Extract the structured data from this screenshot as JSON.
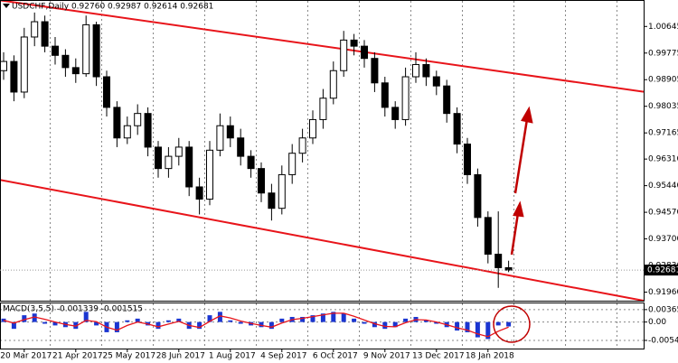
{
  "chart_data": {
    "type": "candlestick",
    "title": "USDCHF,Daily  0.92760 0.92987 0.92614 0.92681",
    "categories": [
      null,
      null,
      "20 Mar 2017",
      null,
      null,
      null,
      null,
      "21 Apr 2017",
      null,
      null,
      null,
      null,
      "25 May 2017",
      null,
      null,
      null,
      null,
      "28 Jun 2017",
      null,
      null,
      null,
      null,
      "1 Aug 2017",
      null,
      null,
      null,
      null,
      "4 Sep 2017",
      null,
      null,
      null,
      null,
      "6 Oct 2017",
      null,
      null,
      null,
      null,
      "9 Nov 2017",
      null,
      null,
      null,
      null,
      "13 Dec 2017",
      null,
      null,
      null,
      null,
      "18 Jan 2018",
      null,
      null
    ],
    "open": [
      0.992,
      0.995,
      0.985,
      1.003,
      1.008,
      1.0,
      0.997,
      0.993,
      0.991,
      1.007,
      0.99,
      0.98,
      0.97,
      0.974,
      0.978,
      0.967,
      0.96,
      0.964,
      0.967,
      0.954,
      0.95,
      0.966,
      0.974,
      0.97,
      0.964,
      0.96,
      0.952,
      0.947,
      0.958,
      0.965,
      0.97,
      0.976,
      0.983,
      0.992,
      1.002,
      1.0,
      0.996,
      0.988,
      0.98,
      0.976,
      0.99,
      0.994,
      0.99,
      0.987,
      0.978,
      0.968,
      0.958,
      0.944,
      0.932,
      0.9276
    ],
    "high": [
      0.998,
      0.997,
      1.006,
      1.011,
      1.01,
      1.003,
      0.999,
      0.996,
      1.01,
      1.008,
      0.992,
      0.982,
      0.977,
      0.981,
      0.98,
      0.969,
      0.967,
      0.97,
      0.969,
      0.957,
      0.969,
      0.978,
      0.977,
      0.973,
      0.966,
      0.962,
      0.955,
      0.961,
      0.968,
      0.973,
      0.979,
      0.986,
      0.995,
      1.005,
      1.004,
      1.002,
      0.998,
      0.99,
      0.982,
      0.993,
      0.998,
      0.996,
      0.992,
      0.989,
      0.98,
      0.97,
      0.96,
      0.946,
      0.946,
      0.92987
    ],
    "low": [
      0.989,
      0.982,
      0.983,
      1.0,
      0.998,
      0.994,
      0.99,
      0.988,
      0.99,
      0.987,
      0.977,
      0.967,
      0.968,
      0.971,
      0.964,
      0.957,
      0.957,
      0.961,
      0.951,
      0.945,
      0.948,
      0.964,
      0.967,
      0.961,
      0.957,
      0.949,
      0.943,
      0.945,
      0.955,
      0.962,
      0.968,
      0.973,
      0.981,
      0.99,
      0.997,
      0.993,
      0.985,
      0.977,
      0.973,
      0.974,
      0.988,
      0.987,
      0.984,
      0.975,
      0.965,
      0.955,
      0.941,
      0.929,
      0.921,
      0.92614
    ],
    "close": [
      0.995,
      0.985,
      1.003,
      1.008,
      1.0,
      0.997,
      0.993,
      0.991,
      1.007,
      0.99,
      0.98,
      0.97,
      0.974,
      0.978,
      0.967,
      0.96,
      0.964,
      0.967,
      0.954,
      0.95,
      0.966,
      0.974,
      0.97,
      0.964,
      0.96,
      0.952,
      0.947,
      0.958,
      0.965,
      0.97,
      0.976,
      0.983,
      0.992,
      1.002,
      1.0,
      0.996,
      0.988,
      0.98,
      0.976,
      0.99,
      0.994,
      0.99,
      0.987,
      0.978,
      0.968,
      0.958,
      0.944,
      0.932,
      0.9276,
      0.92681
    ],
    "bull_color": "#ffffff",
    "bear_color": "#000000",
    "ylim": [
      0.9168,
      1.0148
    ],
    "yticks": [
      1.00645,
      0.99775,
      0.98905,
      0.98035,
      0.97165,
      {
        "value": 0.9631,
        "label": "0.96310"
      },
      {
        "value": 0.9544,
        "label": "0.95440"
      },
      {
        "value": 0.9457,
        "label": "0.94570"
      },
      {
        "value": 0.937,
        "label": "0.93700"
      },
      {
        "value": 0.9283,
        "label": "0.92830"
      },
      {
        "value": 0.9196,
        "label": "0.91960"
      }
    ],
    "current_price": {
      "value": 0.92681,
      "label": "0.92681"
    },
    "channels": [
      {
        "color": "#e8141a",
        "x": [
          -0.35,
          62.1
        ],
        "y": [
          1.015,
          0.9851
        ]
      },
      {
        "color": "#e8141a",
        "x": [
          -0.35,
          62.1
        ],
        "y": [
          0.9563,
          0.9168
        ]
      }
    ],
    "grid": true,
    "macd": {
      "type": "macd",
      "label": "MACD(3,5,5) -0.001339 -0.001515",
      "color": "#1b36d1",
      "signal_color": "#e8141a",
      "values": [
        0.001,
        -0.002,
        0.002,
        0.0025,
        -0.0005,
        -0.001,
        -0.0015,
        -0.002,
        0.003,
        -0.001,
        -0.003,
        -0.003,
        0.0005,
        0.001,
        -0.001,
        -0.002,
        0.0005,
        0.001,
        -0.002,
        -0.002,
        0.002,
        0.003,
        0.0005,
        -0.0005,
        -0.001,
        -0.0015,
        -0.002,
        0.001,
        0.0015,
        0.0015,
        0.002,
        0.0025,
        0.003,
        0.0025,
        0.001,
        -0.0005,
        -0.0015,
        -0.002,
        -0.0015,
        0.001,
        0.0015,
        0.0005,
        -0.0005,
        -0.0015,
        -0.0025,
        -0.003,
        -0.0045,
        -0.005,
        -0.001,
        -0.0013
      ],
      "signal": [
        0.0005,
        -0.0003,
        0.0007,
        0.0015,
        0.0008,
        0.0,
        -0.0007,
        -0.0012,
        0.0005,
        0.0001,
        -0.0015,
        -0.0024,
        -0.001,
        0.0,
        -0.0006,
        -0.0014,
        -0.0006,
        0.0002,
        -0.001,
        -0.0016,
        0.0002,
        0.0018,
        0.0012,
        0.0003,
        -0.0004,
        -0.001,
        -0.0015,
        -0.0003,
        0.0007,
        0.0011,
        0.0016,
        0.0021,
        0.0026,
        0.0026,
        0.0017,
        0.0006,
        -0.0005,
        -0.0013,
        -0.0014,
        -0.0002,
        0.0007,
        0.0006,
        0.0,
        -0.0008,
        -0.0017,
        -0.0024,
        -0.0035,
        -0.0043,
        -0.0027,
        -0.0015
      ],
      "ylim": [
        0.00548,
        -0.0078
      ],
      "yticks": [
        0.003654,
        {
          "value": 0,
          "label": "0.00"
        },
        -0.005404
      ]
    }
  }
}
